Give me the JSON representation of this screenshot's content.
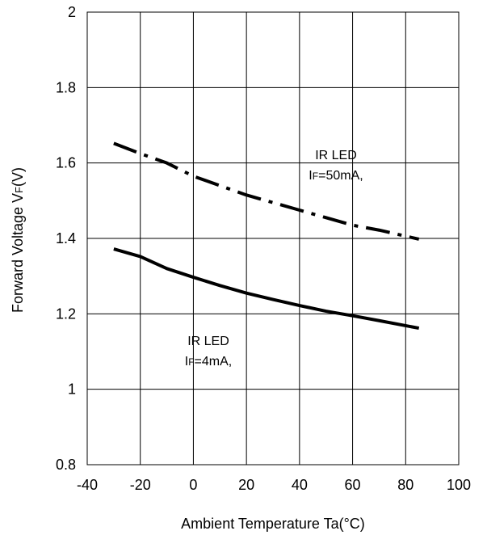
{
  "chart_data": {
    "type": "line",
    "title": "",
    "xlabel": "Ambient Temperature Ta(°C)",
    "ylabel": "Forward Voltage VF(V)",
    "ylabel_main": "Forward Voltage V",
    "ylabel_sub": "F",
    "ylabel_tail": "(V)",
    "xlim": [
      -40,
      100
    ],
    "ylim": [
      0.8,
      2
    ],
    "xticks": [
      -40,
      -20,
      0,
      20,
      40,
      60,
      80,
      100
    ],
    "yticks": [
      0.8,
      1,
      1.2,
      1.4,
      1.6,
      1.8,
      2
    ],
    "xtick_labels": [
      "-40",
      "-20",
      "0",
      "20",
      "40",
      "60",
      "80",
      "100"
    ],
    "ytick_labels": [
      "0.8",
      "1",
      "1.2",
      "1.4",
      "1.6",
      "1.8",
      "2"
    ],
    "grid": true,
    "series": [
      {
        "style": "dash-dot",
        "x": [
          -30,
          -20,
          -10,
          0,
          10,
          20,
          30,
          40,
          50,
          60,
          70,
          85
        ],
        "y": [
          1.652,
          1.625,
          1.6,
          1.565,
          1.54,
          1.515,
          1.495,
          1.475,
          1.455,
          1.435,
          1.422,
          1.398
        ]
      },
      {
        "style": "solid",
        "x": [
          -30,
          -20,
          -10,
          0,
          10,
          20,
          30,
          40,
          50,
          60,
          70,
          85
        ],
        "y": [
          1.372,
          1.352,
          1.32,
          1.297,
          1.275,
          1.255,
          1.238,
          1.222,
          1.207,
          1.195,
          1.182,
          1.162
        ]
      }
    ],
    "annotations": [
      {
        "line1": "IR LED",
        "line2_main": "I",
        "line2_sub": "F",
        "line2_tail": "=50mA,"
      },
      {
        "line1": "IR LED",
        "line2_main": "I",
        "line2_sub": "F",
        "line2_tail": "=4mA,"
      }
    ]
  }
}
